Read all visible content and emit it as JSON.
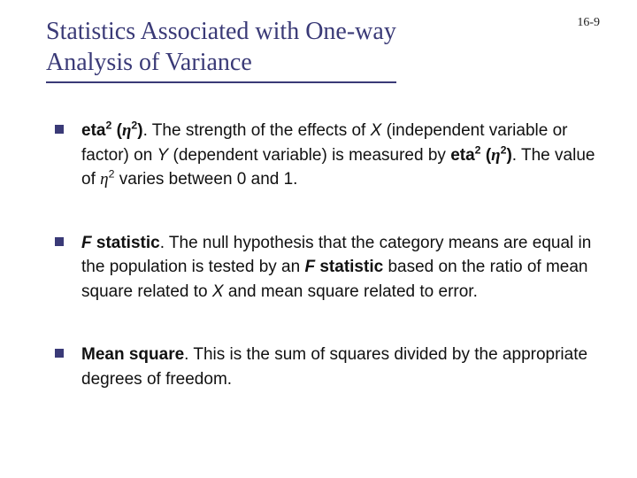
{
  "page_number": "16-9",
  "title_line1": "Statistics Associated with One-way",
  "title_line2": "Analysis of Variance",
  "colors": {
    "title_color": "#3a3a77",
    "title_underline": "#3a3a77",
    "bullet_color": "#3a3a77",
    "body_text": "#111111",
    "background": "#ffffff"
  },
  "typography": {
    "title_font": "Times New Roman",
    "title_fontsize_pt": 21,
    "body_font": "Tahoma",
    "body_fontsize_pt": 14
  },
  "bullets": [
    {
      "term_bold": "eta",
      "term_sup": "2",
      "paren_open": " (",
      "eta1": "η",
      "eta1_sup": "2",
      "paren_close": ")",
      "t1": ".  The strength of the effects of ",
      "Xvar": "X",
      "t2": " (independent variable or factor) on ",
      "Yvar": "Y",
      "t3": " (dependent variable) is measured by ",
      "term2_bold": "eta",
      "term2_sup": "2",
      "paren2_open": " (",
      "eta2": "η",
      "eta2_sup": "2",
      "paren2_close": ")",
      "t4": ".  The value of ",
      "eta3": "η",
      "eta3_sup": "2",
      "t5": " varies between 0 and 1."
    },
    {
      "term_bold": "F",
      "term_rest_bold": " statistic",
      "t1": ".  The null hypothesis that the category means are equal in the population is tested by an ",
      "term2_bold": "F",
      "term2_rest_bold": " statistic",
      "t2": " based on the ratio of mean square related to ",
      "Xvar": "X",
      "t3": " and mean square related to error."
    },
    {
      "term_bold": "Mean square",
      "t1": ".  This is the sum of squares divided by the appropriate degrees of freedom."
    }
  ]
}
